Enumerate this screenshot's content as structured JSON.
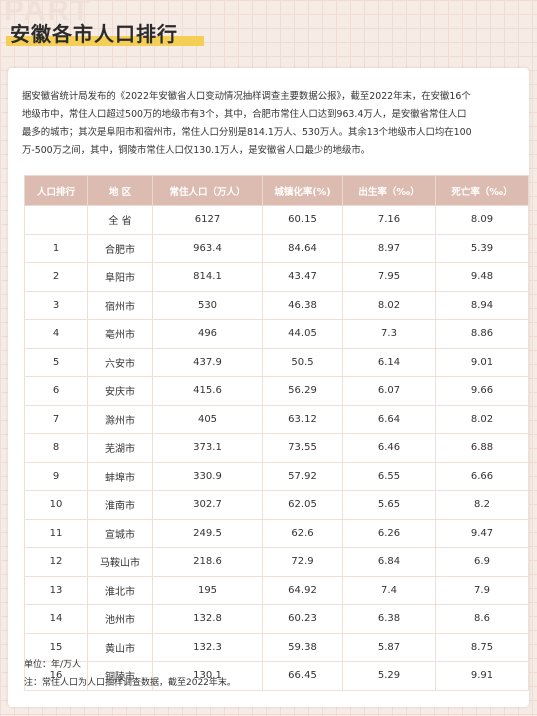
{
  "header": {
    "watermark": "PART",
    "title": "安徽各市人口排行"
  },
  "intro": {
    "lines": [
      "据安徽省统计局发布的《2022年安徽省人口变动情况抽样调查主要数据公报》，截至2022年末，在安徽16个",
      "地级市中，常住人口超过500万的地级市有3个，其中，合肥市常住人口达到963.4万人，是安徽省常住人口",
      "最多的城市；其次是阜阳市和宿州市，常住人口分别是814.1万人、530万人。其余13个地级市人口均在100",
      "万-500万之间，其中，铜陵市常住人口仅130.1万人，是安徽省人口最少的地级市。"
    ]
  },
  "table": {
    "columns": [
      "人口排行",
      "地 区",
      "常住人口（万人）",
      "城镇化率(%)",
      "出生率（‰）",
      "死亡率（‰）"
    ],
    "rows": [
      [
        null,
        "全 省",
        "6127",
        "60.15",
        "7.16",
        "8.09"
      ],
      [
        "1",
        "合肥市",
        "963.4",
        "84.64",
        "8.97",
        "5.39"
      ],
      [
        "2",
        "阜阳市",
        "814.1",
        "43.47",
        "7.95",
        "9.48"
      ],
      [
        "3",
        "宿州市",
        "530",
        "46.38",
        "8.02",
        "8.94"
      ],
      [
        "4",
        "亳州市",
        "496",
        "44.05",
        "7.3",
        "8.86"
      ],
      [
        "5",
        "六安市",
        "437.9",
        "50.5",
        "6.14",
        "9.01"
      ],
      [
        "6",
        "安庆市",
        "415.6",
        "56.29",
        "6.07",
        "9.66"
      ],
      [
        "7",
        "滁州市",
        "405",
        "63.12",
        "6.64",
        "8.02"
      ],
      [
        "8",
        "芜湖市",
        "373.1",
        "73.55",
        "6.46",
        "6.88"
      ],
      [
        "9",
        "蚌埠市",
        "330.9",
        "57.92",
        "6.55",
        "6.66"
      ],
      [
        "10",
        "淮南市",
        "302.7",
        "62.05",
        "5.65",
        "8.2"
      ],
      [
        "11",
        "宣城市",
        "249.5",
        "62.6",
        "6.26",
        "9.47"
      ],
      [
        "12",
        "马鞍山市",
        "218.6",
        "72.9",
        "6.84",
        "6.9"
      ],
      [
        "13",
        "淮北市",
        "195",
        "64.92",
        "7.4",
        "7.9"
      ],
      [
        "14",
        "池州市",
        "132.8",
        "60.23",
        "6.38",
        "8.6"
      ],
      [
        "15",
        "黄山市",
        "132.3",
        "59.38",
        "5.87",
        "8.75"
      ],
      [
        "16",
        "铜陵市",
        "130.1",
        "66.45",
        "5.29",
        "9.91"
      ]
    ]
  },
  "notes": [
    "单位：年/万人",
    "注：常住人口为人口抽样调查数据，截至2022年末。"
  ]
}
